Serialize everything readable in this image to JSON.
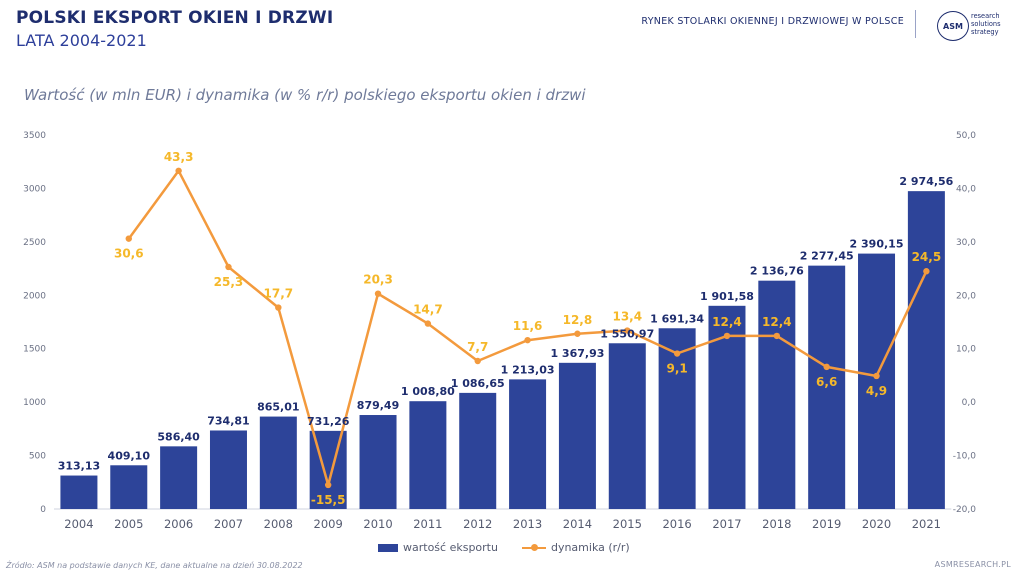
{
  "header": {
    "title": "POLSKI EKSPORT OKIEN I DRZWI",
    "subtitle": "LATA 2004-2021",
    "right_text": "RYNEK STOLARKI OKIENNEJ I DRZWIOWEJ W POLSCE",
    "logo_mark": "ASM",
    "logo_lines": [
      "research",
      "solutions",
      "strategy"
    ]
  },
  "footer": {
    "source": "Źródło: ASM na podstawie danych KE, dane aktualne na dzień 30.08.2022",
    "url": "ASMRESEARCH.PL"
  },
  "colors": {
    "bar": "#2d4499",
    "line": "#f39a3d",
    "line_label": "#f5b82a",
    "bar_label": "#1e2d6e"
  },
  "chart_data": {
    "type": "bar",
    "title": "Wartość (w mln EUR) i dynamika (w % r/r) polskiego eksportu okien i drzwi",
    "categories": [
      "2004",
      "2005",
      "2006",
      "2007",
      "2008",
      "2009",
      "2010",
      "2011",
      "2012",
      "2013",
      "2014",
      "2015",
      "2016",
      "2017",
      "2018",
      "2019",
      "2020",
      "2021"
    ],
    "y_left": {
      "min": 0,
      "max": 3500,
      "ticks": [
        "0",
        "500",
        "1000",
        "1500",
        "2000",
        "2500",
        "3000",
        "3500"
      ]
    },
    "y_right": {
      "min": -20,
      "max": 50,
      "ticks": [
        "-20,0",
        "-10,0",
        "0,0",
        "10,0",
        "20,0",
        "30,0",
        "40,0",
        "50,0"
      ]
    },
    "series": [
      {
        "name": "wartość eksportu",
        "type": "bar",
        "axis": "left",
        "values": [
          313.13,
          409.1,
          586.4,
          734.81,
          865.01,
          731.26,
          879.49,
          1008.8,
          1086.65,
          1213.03,
          1367.93,
          1550.97,
          1691.34,
          1901.58,
          2136.76,
          2277.45,
          2390.15,
          2974.56
        ],
        "labels": [
          "313,13",
          "409,10",
          "586,40",
          "734,81",
          "865,01",
          "731,26",
          "879,49",
          "1 008,80",
          "1 086,65",
          "1 213,03",
          "1 367,93",
          "1 550,97",
          "1 691,34",
          "1 901,58",
          "2 136,76",
          "2 277,45",
          "2 390,15",
          "2 974,56"
        ]
      },
      {
        "name": "dynamika (r/r)",
        "type": "line",
        "axis": "right",
        "values": [
          null,
          30.6,
          43.3,
          25.3,
          17.7,
          -15.5,
          20.3,
          14.7,
          7.7,
          11.6,
          12.8,
          13.4,
          9.1,
          12.4,
          12.4,
          6.6,
          4.9,
          24.5
        ],
        "labels": [
          "",
          "30,6",
          "43,3",
          "25,3",
          "17,7",
          "-15,5",
          "20,3",
          "14,7",
          "7,7",
          "11,6",
          "12,8",
          "13,4",
          "9,1",
          "12,4",
          "12,4",
          "6,6",
          "4,9",
          "24,5"
        ]
      }
    ],
    "legend": "bottom-center",
    "grid": false
  }
}
